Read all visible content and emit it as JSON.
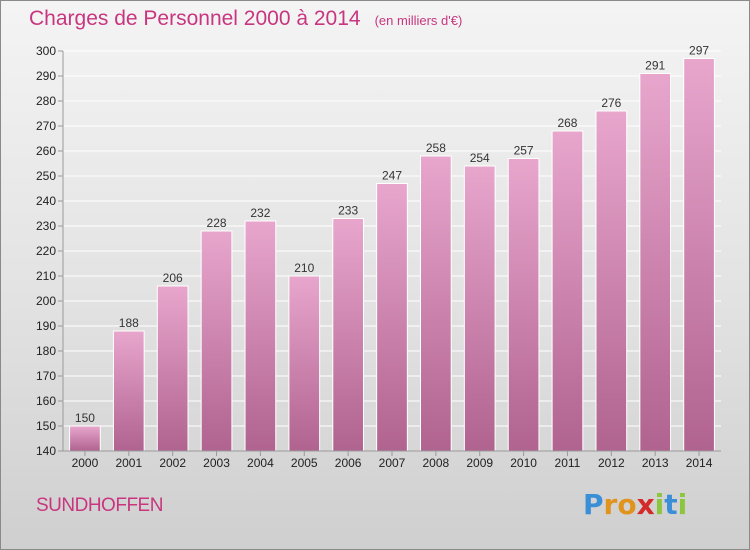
{
  "header": {
    "title": "Charges de Personnel 2000 à 2014",
    "subtitle": "(en milliers d'€)"
  },
  "footer": {
    "place": "SUNDHOFFEN",
    "brand_letters": [
      "P",
      "r",
      "o",
      "x",
      "i",
      "t",
      "i"
    ],
    "brand_colors": [
      "#3a8fd6",
      "#e0941e",
      "#e0941e",
      "#d42a2a",
      "#8cc63f",
      "#3a8fd6",
      "#8cc63f"
    ]
  },
  "chart_data": {
    "type": "bar",
    "categories": [
      "2000",
      "2001",
      "2002",
      "2003",
      "2004",
      "2005",
      "2006",
      "2007",
      "2008",
      "2009",
      "2010",
      "2011",
      "2012",
      "2013",
      "2014"
    ],
    "values": [
      150,
      188,
      206,
      228,
      232,
      210,
      233,
      247,
      258,
      254,
      257,
      268,
      276,
      291,
      297
    ],
    "data_labels": [
      "150",
      "188",
      "206",
      "228",
      "232",
      "210",
      "233",
      "247",
      "258",
      "254",
      "257",
      "268",
      "276",
      "291",
      "297"
    ],
    "y_ticks": [
      "140",
      "150",
      "160",
      "170",
      "180",
      "190",
      "200",
      "210",
      "220",
      "230",
      "240",
      "250",
      "260",
      "270",
      "280",
      "290",
      "300"
    ],
    "ylim": [
      140,
      300
    ],
    "grid": true,
    "colors": {
      "bar_top": "#e8a6cd",
      "bar_bottom": "#b0638f",
      "grid": "#ffffff",
      "axis": "#9a9a9a"
    }
  }
}
